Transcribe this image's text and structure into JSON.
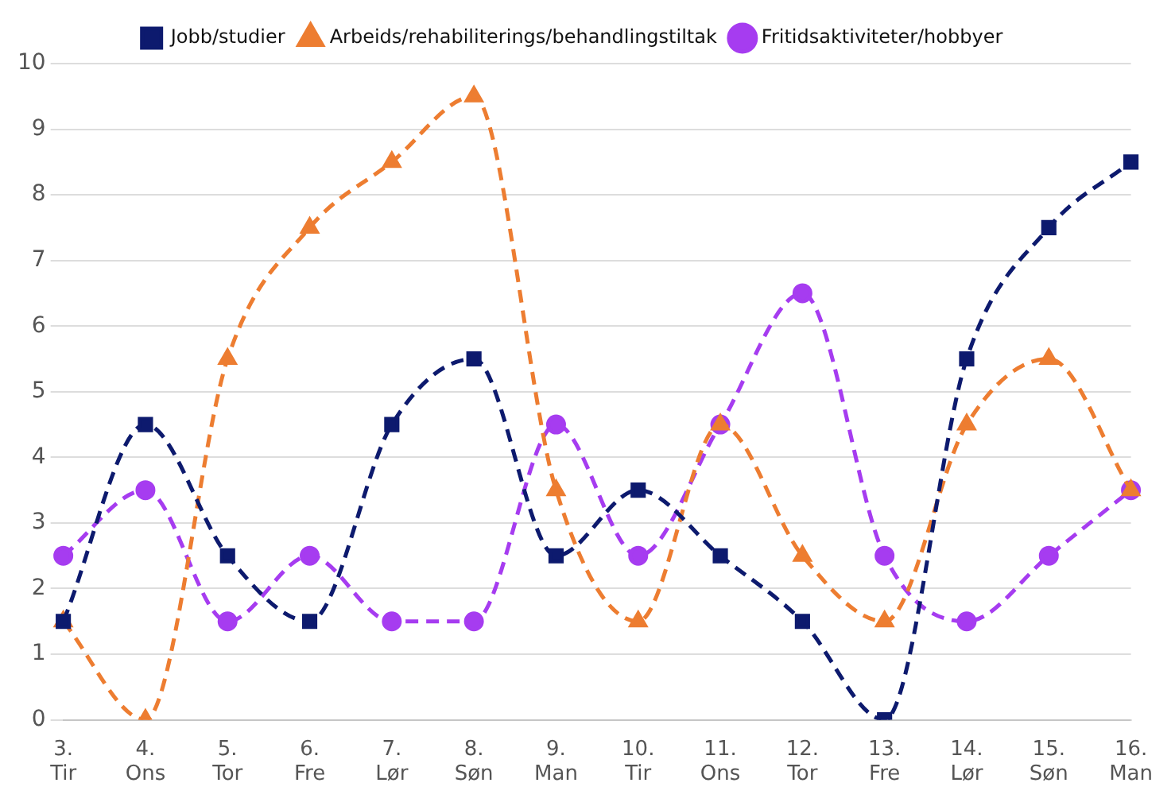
{
  "chart_data": {
    "type": "line",
    "categories": [
      "3.\nTir",
      "4.\nOns",
      "5.\nTor",
      "6.\nFre",
      "7.\nLør",
      "8.\nSøn",
      "9.\nMan",
      "10.\nTir",
      "11.\nOns",
      "12.\nTor",
      "13.\nFre",
      "14.\nLør",
      "15.\nSøn",
      "16.\nMan"
    ],
    "series": [
      {
        "name": "Jobb/studier",
        "color": "#0d1a6e",
        "marker": "square",
        "values": [
          1.5,
          4.5,
          2.5,
          1.5,
          4.5,
          5.5,
          2.5,
          3.5,
          2.5,
          1.5,
          0,
          5.5,
          7.5,
          8.5
        ]
      },
      {
        "name": "Arbeids/rehabiliterings/behandlingstiltak",
        "color": "#ed7d31",
        "marker": "triangle",
        "values": [
          1.5,
          0,
          5.5,
          7.5,
          8.5,
          9.5,
          3.5,
          1.5,
          4.5,
          2.5,
          1.5,
          4.5,
          5.5,
          3.5
        ]
      },
      {
        "name": "Fritidsaktiviteter/hobbyer",
        "color": "#a63cf0",
        "marker": "circle",
        "values": [
          2.5,
          3.5,
          1.5,
          2.5,
          1.5,
          1.5,
          4.5,
          2.5,
          4.5,
          6.5,
          2.5,
          1.5,
          2.5,
          3.5
        ]
      }
    ],
    "ylim": [
      0,
      10
    ],
    "yticks": [
      0,
      1,
      2,
      3,
      4,
      5,
      6,
      7,
      8,
      9,
      10
    ],
    "grid": "y",
    "legend": "top",
    "line_style": "dashed"
  }
}
